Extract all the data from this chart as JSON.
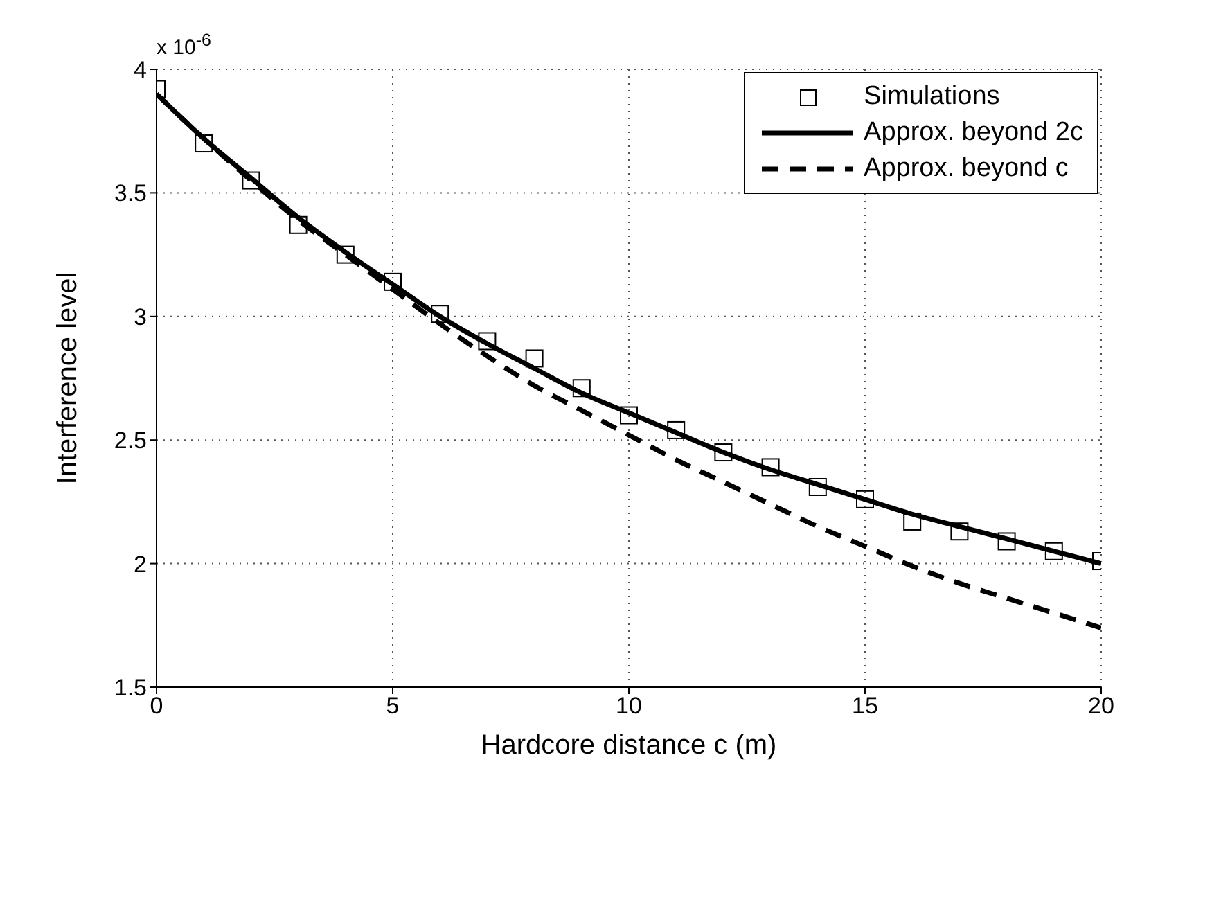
{
  "chart_data": {
    "type": "line",
    "xlabel": "Hardcore distance c (m)",
    "ylabel": "Interference level",
    "annotations": [
      "x 10$^{-6}$"
    ],
    "x": [
      0,
      1,
      2,
      3,
      4,
      5,
      6,
      7,
      8,
      9,
      10,
      11,
      12,
      13,
      14,
      15,
      16,
      17,
      18,
      19,
      20
    ],
    "series": [
      {
        "name": "Simulations",
        "type": "scatter",
        "marker": "square",
        "color": "#000000",
        "values": [
          3.92,
          3.7,
          3.55,
          3.37,
          3.25,
          3.14,
          3.01,
          2.9,
          2.83,
          2.71,
          2.6,
          2.54,
          2.45,
          2.39,
          2.31,
          2.26,
          2.17,
          2.13,
          2.09,
          2.05,
          2.01
        ]
      },
      {
        "name": "Approx. beyond 2c",
        "type": "line",
        "line_style": "solid",
        "color": "#000000",
        "values": [
          3.9,
          3.72,
          3.56,
          3.4,
          3.26,
          3.13,
          3.0,
          2.89,
          2.79,
          2.69,
          2.61,
          2.53,
          2.45,
          2.38,
          2.32,
          2.26,
          2.2,
          2.15,
          2.1,
          2.05,
          2.0
        ]
      },
      {
        "name": "Approx. beyond c",
        "type": "line",
        "line_style": "dashed",
        "color": "#000000",
        "values": [
          3.9,
          3.72,
          3.55,
          3.39,
          3.25,
          3.11,
          2.97,
          2.84,
          2.72,
          2.62,
          2.52,
          2.42,
          2.33,
          2.24,
          2.15,
          2.07,
          1.99,
          1.92,
          1.86,
          1.8,
          1.74
        ]
      }
    ],
    "xlim": [
      0,
      20
    ],
    "xticks": [
      0,
      5,
      10,
      15,
      20
    ],
    "ylim": [
      1.5,
      4
    ],
    "yticks": [
      1.5,
      2,
      2.5,
      3,
      3.5,
      4
    ],
    "grid": true,
    "legend": "top right"
  }
}
